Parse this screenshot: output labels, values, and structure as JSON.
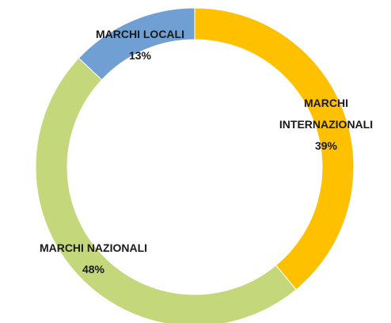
{
  "chart_data": {
    "type": "donut",
    "categories": [
      "MARCHI INTERNAZIONALI",
      "MARCHI NAZIONALI",
      "MARCHI LOCALI"
    ],
    "values": [
      39,
      48,
      13
    ],
    "value_labels": [
      "39%",
      "48%",
      "13%"
    ],
    "colors": [
      "#ffc000",
      "#c4d77a",
      "#6f9fd3"
    ]
  }
}
